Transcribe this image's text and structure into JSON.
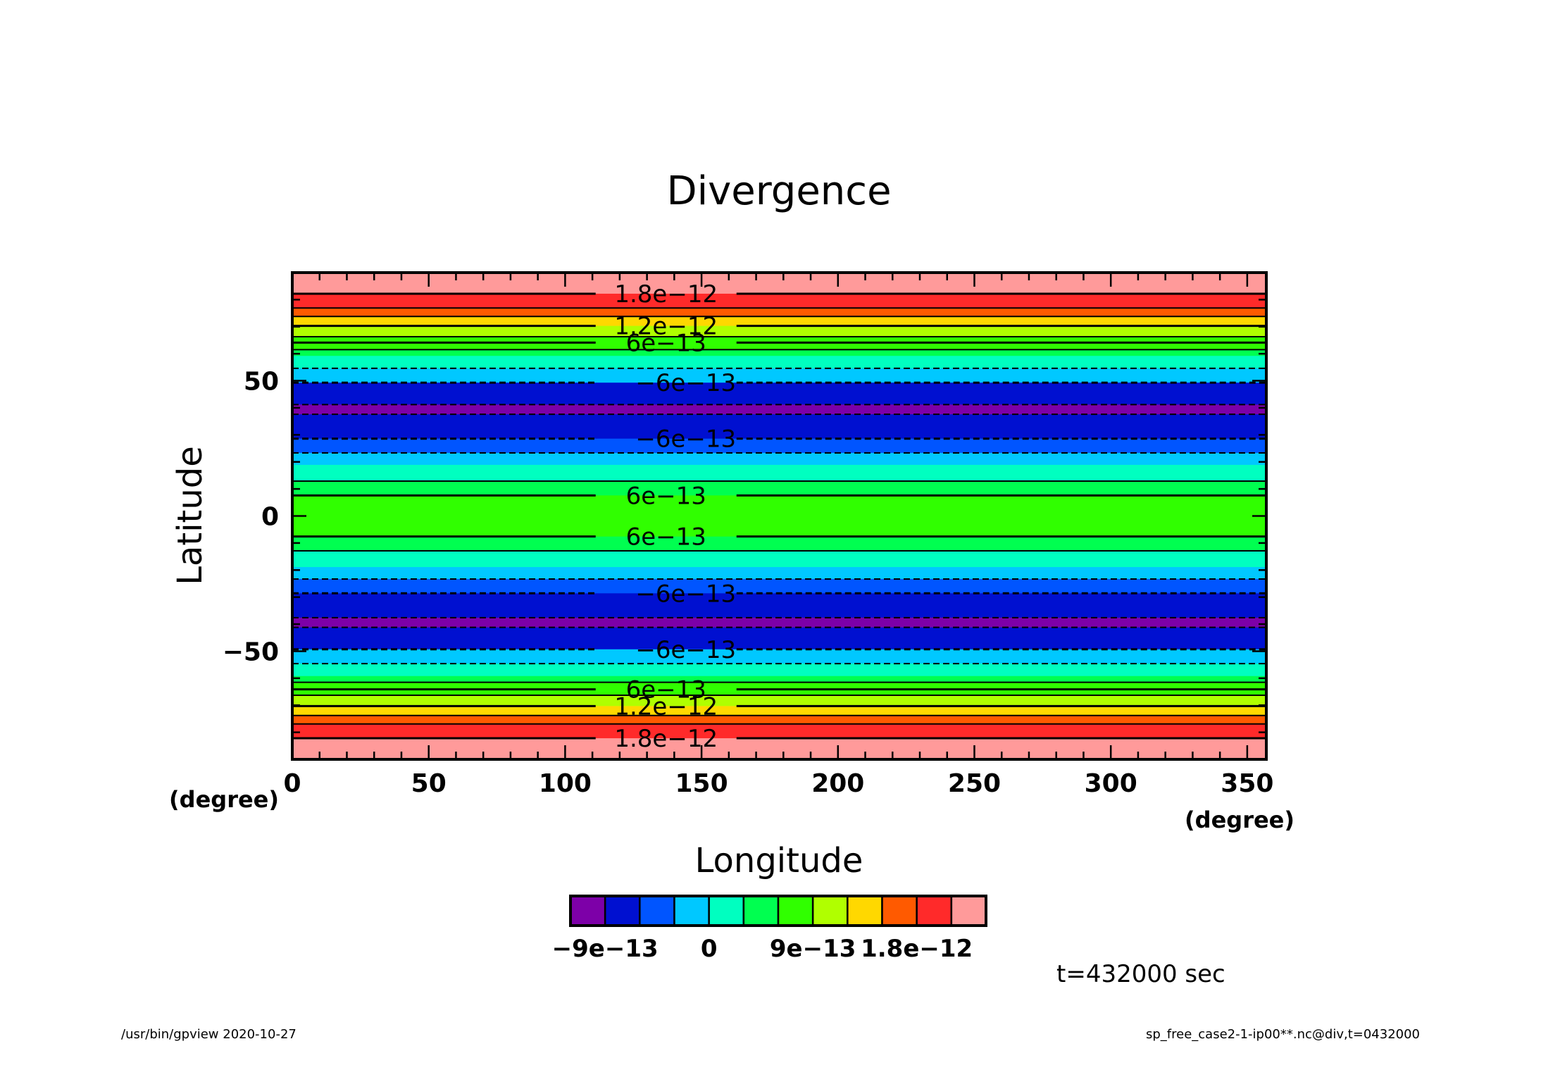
{
  "chart_data": {
    "type": "heatmap",
    "title": "Divergence",
    "xlabel": "Longitude",
    "ylabel": "Latitude",
    "x_unit": "(degree)",
    "y_unit": "(degree)",
    "xlim": [
      0,
      357
    ],
    "ylim": [
      -90,
      90
    ],
    "xticks": [
      "0",
      "50",
      "100",
      "150",
      "200",
      "250",
      "300",
      "350"
    ],
    "yticks": [
      "50",
      "0",
      "−50"
    ],
    "time_label": "t=432000 sec",
    "colorbar": {
      "colors": [
        "#7d00a8",
        "#0010d0",
        "#0055ff",
        "#00c8ff",
        "#00ffc0",
        "#00ff50",
        "#30ff00",
        "#b0ff00",
        "#ffd800",
        "#ff5a00",
        "#ff2a2a",
        "#ff9a9a"
      ],
      "labels": [
        "−9e−13",
        "0",
        "9e−13",
        "1.8e−12"
      ],
      "label_at_boundary": [
        1,
        4,
        7,
        10
      ]
    },
    "bands": [
      {
        "lat_min": 82.2,
        "lat_max": 90,
        "color_index": 11
      },
      {
        "lat_min": 76.9,
        "lat_max": 82.2,
        "color_index": 10
      },
      {
        "lat_min": 73.8,
        "lat_max": 76.9,
        "color_index": 9
      },
      {
        "lat_min": 70.3,
        "lat_max": 73.8,
        "color_index": 8
      },
      {
        "lat_min": 66.3,
        "lat_max": 70.3,
        "color_index": 7
      },
      {
        "lat_min": 61.5,
        "lat_max": 66.3,
        "color_index": 6
      },
      {
        "lat_min": 59.2,
        "lat_max": 61.5,
        "color_index": 5
      },
      {
        "lat_min": 54.6,
        "lat_max": 59.2,
        "color_index": 4
      },
      {
        "lat_min": 49.3,
        "lat_max": 54.6,
        "color_index": 3
      },
      {
        "lat_min": 41.2,
        "lat_max": 49.3,
        "color_index": 1
      },
      {
        "lat_min": 37.6,
        "lat_max": 41.2,
        "color_index": 0
      },
      {
        "lat_min": 28.6,
        "lat_max": 37.6,
        "color_index": 1
      },
      {
        "lat_min": 23.3,
        "lat_max": 28.6,
        "color_index": 2
      },
      {
        "lat_min": 18.9,
        "lat_max": 23.3,
        "color_index": 3
      },
      {
        "lat_min": 12.9,
        "lat_max": 18.9,
        "color_index": 4
      },
      {
        "lat_min": 7.6,
        "lat_max": 12.9,
        "color_index": 5
      },
      {
        "lat_min": -7.6,
        "lat_max": 7.6,
        "color_index": 6
      },
      {
        "lat_min": -12.9,
        "lat_max": -7.6,
        "color_index": 5
      },
      {
        "lat_min": -18.9,
        "lat_max": -12.9,
        "color_index": 4
      },
      {
        "lat_min": -23.3,
        "lat_max": -18.9,
        "color_index": 3
      },
      {
        "lat_min": -28.6,
        "lat_max": -23.3,
        "color_index": 2
      },
      {
        "lat_min": -37.6,
        "lat_max": -28.6,
        "color_index": 1
      },
      {
        "lat_min": -41.2,
        "lat_max": -37.6,
        "color_index": 0
      },
      {
        "lat_min": -49.3,
        "lat_max": -41.2,
        "color_index": 1
      },
      {
        "lat_min": -54.6,
        "lat_max": -49.3,
        "color_index": 3
      },
      {
        "lat_min": -59.2,
        "lat_max": -54.6,
        "color_index": 4
      },
      {
        "lat_min": -61.5,
        "lat_max": -59.2,
        "color_index": 5
      },
      {
        "lat_min": -66.3,
        "lat_max": -61.5,
        "color_index": 6
      },
      {
        "lat_min": -70.3,
        "lat_max": -66.3,
        "color_index": 7
      },
      {
        "lat_min": -73.8,
        "lat_max": -70.3,
        "color_index": 8
      },
      {
        "lat_min": -76.9,
        "lat_max": -73.8,
        "color_index": 9
      },
      {
        "lat_min": -82.2,
        "lat_max": -76.9,
        "color_index": 10
      },
      {
        "lat_min": -90,
        "lat_max": -82.2,
        "color_index": 11
      }
    ],
    "contours": [
      {
        "lat": 82.2,
        "dashed": false,
        "label": "1.8e−12"
      },
      {
        "lat": 76.9,
        "dashed": false
      },
      {
        "lat": 73.8,
        "dashed": false
      },
      {
        "lat": 70.3,
        "dashed": false,
        "label": "1.2e−12"
      },
      {
        "lat": 66.3,
        "dashed": false
      },
      {
        "lat": 64.1,
        "dashed": false,
        "label": "6e−13"
      },
      {
        "lat": 61.5,
        "dashed": false
      },
      {
        "lat": 54.6,
        "dashed": true
      },
      {
        "lat": 49.3,
        "dashed": true,
        "label": "−6e−13"
      },
      {
        "lat": 41.2,
        "dashed": true
      },
      {
        "lat": 37.6,
        "dashed": true
      },
      {
        "lat": 28.6,
        "dashed": true,
        "label": "−6e−13"
      },
      {
        "lat": 23.3,
        "dashed": true
      },
      {
        "lat": 12.9,
        "dashed": false
      },
      {
        "lat": 7.6,
        "dashed": false,
        "label": "6e−13"
      },
      {
        "lat": -7.6,
        "dashed": false,
        "label": "6e−13"
      },
      {
        "lat": -12.9,
        "dashed": false
      },
      {
        "lat": -23.3,
        "dashed": true
      },
      {
        "lat": -28.6,
        "dashed": true,
        "label": "−6e−13"
      },
      {
        "lat": -37.6,
        "dashed": true
      },
      {
        "lat": -41.2,
        "dashed": true
      },
      {
        "lat": -49.3,
        "dashed": true,
        "label": "−6e−13"
      },
      {
        "lat": -54.6,
        "dashed": true
      },
      {
        "lat": -61.5,
        "dashed": false
      },
      {
        "lat": -64.1,
        "dashed": false,
        "label": "6e−13"
      },
      {
        "lat": -66.3,
        "dashed": false
      },
      {
        "lat": -70.3,
        "dashed": false,
        "label": "1.2e−12"
      },
      {
        "lat": -73.8,
        "dashed": false
      },
      {
        "lat": -76.9,
        "dashed": false
      },
      {
        "lat": -82.2,
        "dashed": false,
        "label": "1.8e−12"
      }
    ]
  },
  "footer": {
    "left": "/usr/bin/gpview   2020-10-27",
    "right": "sp_free_case2-1-ip00**.nc@div,t=0432000"
  }
}
